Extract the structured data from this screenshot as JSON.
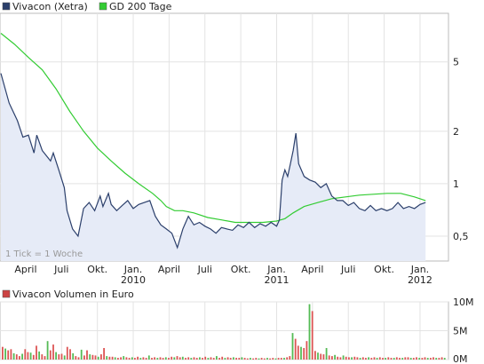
{
  "chart_data": [
    {
      "type": "line",
      "title": "",
      "legend": [
        {
          "name": "Vivacon (Xetra)",
          "color": "#2b3f6b"
        },
        {
          "name": "GD 200 Tage",
          "color": "#33cc33"
        }
      ],
      "note": "1 Tick = 1 Woche",
      "y_scale": "log",
      "ylim": [
        0.36,
        9.5
      ],
      "y_ticks": [
        {
          "label": "5",
          "value": 5
        },
        {
          "label": "2",
          "value": 2
        },
        {
          "label": "1",
          "value": 1
        },
        {
          "label": "0,5",
          "value": 0.5
        }
      ],
      "x_range": [
        0,
        162
      ],
      "x_ticks": [
        {
          "label": "April",
          "week": 9
        },
        {
          "label": "Juli",
          "week": 22
        },
        {
          "label": "Okt.",
          "week": 35
        },
        {
          "label": "Jan.",
          "week": 48,
          "year": "2010"
        },
        {
          "label": "April",
          "week": 61
        },
        {
          "label": "Juli",
          "week": 74
        },
        {
          "label": "Okt.",
          "week": 87
        },
        {
          "label": "Jan.",
          "week": 100,
          "year": "2011"
        },
        {
          "label": "April",
          "week": 113
        },
        {
          "label": "Juli",
          "week": 126
        },
        {
          "label": "Okt.",
          "week": 139
        },
        {
          "label": "Jan.",
          "week": 152,
          "year": "2012"
        }
      ],
      "series": [
        {
          "name": "Vivacon (Xetra)",
          "color": "#2b3f6b",
          "fill": "#e6ebf7",
          "points": [
            [
              0,
              4.3
            ],
            [
              3,
              2.9
            ],
            [
              6,
              2.3
            ],
            [
              8,
              1.85
            ],
            [
              10,
              1.9
            ],
            [
              12,
              1.5
            ],
            [
              13,
              1.9
            ],
            [
              15,
              1.55
            ],
            [
              18,
              1.35
            ],
            [
              19,
              1.5
            ],
            [
              21,
              1.2
            ],
            [
              23,
              0.95
            ],
            [
              24,
              0.7
            ],
            [
              26,
              0.55
            ],
            [
              28,
              0.5
            ],
            [
              30,
              0.72
            ],
            [
              32,
              0.78
            ],
            [
              34,
              0.7
            ],
            [
              36,
              0.85
            ],
            [
              37,
              0.74
            ],
            [
              39,
              0.88
            ],
            [
              40,
              0.76
            ],
            [
              42,
              0.7
            ],
            [
              44,
              0.75
            ],
            [
              46,
              0.8
            ],
            [
              48,
              0.72
            ],
            [
              50,
              0.76
            ],
            [
              52,
              0.78
            ],
            [
              54,
              0.8
            ],
            [
              56,
              0.65
            ],
            [
              58,
              0.58
            ],
            [
              60,
              0.55
            ],
            [
              62,
              0.52
            ],
            [
              64,
              0.43
            ],
            [
              66,
              0.55
            ],
            [
              68,
              0.65
            ],
            [
              70,
              0.58
            ],
            [
              72,
              0.6
            ],
            [
              74,
              0.57
            ],
            [
              76,
              0.55
            ],
            [
              78,
              0.52
            ],
            [
              80,
              0.56
            ],
            [
              82,
              0.55
            ],
            [
              84,
              0.54
            ],
            [
              86,
              0.58
            ],
            [
              88,
              0.56
            ],
            [
              90,
              0.6
            ],
            [
              92,
              0.56
            ],
            [
              94,
              0.59
            ],
            [
              96,
              0.57
            ],
            [
              98,
              0.6
            ],
            [
              100,
              0.57
            ],
            [
              101,
              0.62
            ],
            [
              102,
              1.05
            ],
            [
              103,
              1.2
            ],
            [
              104,
              1.1
            ],
            [
              105,
              1.3
            ],
            [
              106,
              1.55
            ],
            [
              107,
              1.95
            ],
            [
              108,
              1.3
            ],
            [
              110,
              1.1
            ],
            [
              112,
              1.05
            ],
            [
              114,
              1.02
            ],
            [
              116,
              0.95
            ],
            [
              118,
              1.0
            ],
            [
              120,
              0.85
            ],
            [
              122,
              0.8
            ],
            [
              124,
              0.8
            ],
            [
              126,
              0.75
            ],
            [
              128,
              0.78
            ],
            [
              130,
              0.72
            ],
            [
              132,
              0.7
            ],
            [
              134,
              0.75
            ],
            [
              136,
              0.7
            ],
            [
              138,
              0.72
            ],
            [
              140,
              0.7
            ],
            [
              142,
              0.72
            ],
            [
              144,
              0.78
            ],
            [
              146,
              0.72
            ],
            [
              148,
              0.74
            ],
            [
              150,
              0.72
            ],
            [
              152,
              0.76
            ],
            [
              154,
              0.78
            ]
          ]
        },
        {
          "name": "GD 200 Tage",
          "color": "#33cc33",
          "points": [
            [
              0,
              7.3
            ],
            [
              5,
              6.3
            ],
            [
              10,
              5.3
            ],
            [
              15,
              4.5
            ],
            [
              20,
              3.5
            ],
            [
              25,
              2.6
            ],
            [
              30,
              2.0
            ],
            [
              35,
              1.6
            ],
            [
              40,
              1.35
            ],
            [
              45,
              1.15
            ],
            [
              50,
              1.0
            ],
            [
              55,
              0.88
            ],
            [
              58,
              0.8
            ],
            [
              60,
              0.74
            ],
            [
              63,
              0.7
            ],
            [
              66,
              0.7
            ],
            [
              70,
              0.68
            ],
            [
              75,
              0.64
            ],
            [
              80,
              0.62
            ],
            [
              85,
              0.6
            ],
            [
              90,
              0.6
            ],
            [
              95,
              0.6
            ],
            [
              100,
              0.61
            ],
            [
              103,
              0.63
            ],
            [
              106,
              0.68
            ],
            [
              110,
              0.74
            ],
            [
              115,
              0.78
            ],
            [
              120,
              0.82
            ],
            [
              125,
              0.84
            ],
            [
              130,
              0.86
            ],
            [
              135,
              0.87
            ],
            [
              140,
              0.88
            ],
            [
              145,
              0.88
            ],
            [
              150,
              0.84
            ],
            [
              154,
              0.8
            ]
          ]
        }
      ]
    },
    {
      "type": "bar",
      "title": "",
      "legend": [
        {
          "name": "Vivacon Volumen in Euro",
          "color": "#cc4444"
        }
      ],
      "ylim": [
        0,
        10
      ],
      "y_ticks": [
        {
          "label": "10M",
          "value": 10
        },
        {
          "label": "5M",
          "value": 5
        },
        {
          "label": "0M",
          "value": 0
        }
      ],
      "x_range": [
        0,
        162
      ],
      "series": [
        {
          "name": "Vivacon Volumen in Euro",
          "unit": "M",
          "values": [
            2.2,
            1.9,
            1.6,
            1.8,
            1.1,
            0.9,
            0.6,
            1.0,
            1.8,
            1.3,
            1.2,
            0.8,
            2.4,
            1.4,
            0.9,
            0.6,
            3.2,
            1.6,
            2.6,
            1.3,
            0.9,
            1.0,
            0.7,
            2.2,
            1.8,
            1.1,
            0.6,
            0.4,
            1.7,
            0.7,
            1.6,
            0.9,
            0.8,
            0.7,
            0.5,
            0.9,
            2.0,
            0.6,
            0.5,
            0.5,
            0.4,
            0.3,
            0.4,
            0.6,
            0.4,
            0.3,
            0.4,
            0.3,
            0.5,
            0.3,
            0.4,
            0.3,
            0.7,
            0.3,
            0.4,
            0.3,
            0.4,
            0.3,
            0.4,
            0.3,
            0.5,
            0.4,
            0.6,
            0.4,
            0.5,
            0.3,
            0.4,
            0.3,
            0.4,
            0.3,
            0.4,
            0.3,
            0.5,
            0.3,
            0.4,
            0.3,
            0.6,
            0.3,
            0.5,
            0.3,
            0.4,
            0.3,
            0.4,
            0.3,
            0.3,
            0.4,
            0.3,
            0.2,
            0.3,
            0.2,
            0.3,
            0.2,
            0.3,
            0.2,
            0.3,
            0.2,
            0.3,
            0.2,
            0.3,
            0.3,
            0.3,
            0.4,
            0.6,
            4.6,
            3.6,
            2.4,
            2.2,
            2.0,
            3.2,
            9.6,
            8.4,
            1.5,
            1.2,
            1.0,
            0.9,
            2.0,
            0.7,
            0.6,
            0.8,
            0.5,
            0.4,
            0.7,
            0.5,
            0.4,
            0.4,
            0.5,
            0.4,
            0.3,
            0.4,
            0.3,
            0.4,
            0.3,
            0.4,
            0.3,
            0.4,
            0.3,
            0.3,
            0.4,
            0.3,
            0.3,
            0.4,
            0.3,
            0.3,
            0.4,
            0.4,
            0.3,
            0.3,
            0.4,
            0.3,
            0.3,
            0.4,
            0.3,
            0.3,
            0.4,
            0.3,
            0.3,
            0.4,
            0.3
          ],
          "colors": "alternating red/green bars"
        }
      ]
    }
  ]
}
